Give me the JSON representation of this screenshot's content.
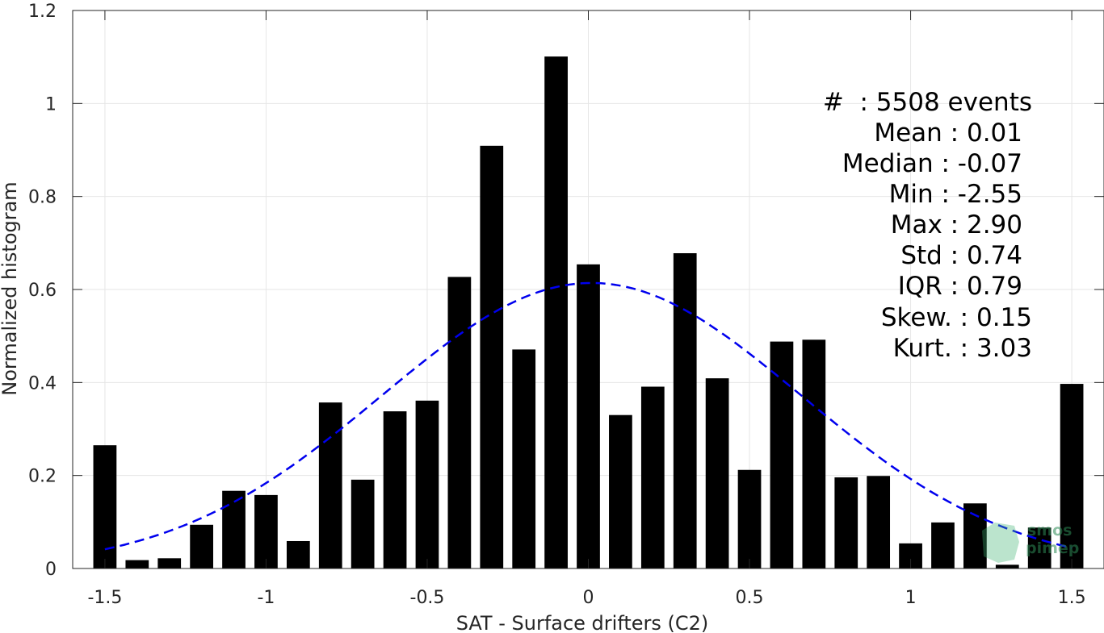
{
  "chart_data": {
    "type": "bar",
    "title": "",
    "xlabel": "SAT - Surface drifters (C2)",
    "ylabel": "Normalized histogram",
    "xlim": [
      -1.6,
      1.6
    ],
    "ylim": [
      0,
      1.2
    ],
    "xticks": [
      -1.5,
      -1,
      -0.5,
      0,
      0.5,
      1,
      1.5
    ],
    "xtick_labels": [
      "-1.5",
      "-1",
      "-0.5",
      "0",
      "0.5",
      "1",
      "1.5"
    ],
    "yticks": [
      0,
      0.2,
      0.4,
      0.6,
      0.8,
      1,
      1.2
    ],
    "ytick_labels": [
      "0",
      "0.2",
      "0.4",
      "0.6",
      "0.8",
      "1",
      "1.2"
    ],
    "grid": true,
    "bar_color": "#000000",
    "x": [
      -1.5,
      -1.4,
      -1.3,
      -1.2,
      -1.1,
      -1.0,
      -0.9,
      -0.8,
      -0.7,
      -0.6,
      -0.5,
      -0.4,
      -0.3,
      -0.2,
      -0.1,
      0.0,
      0.1,
      0.2,
      0.3,
      0.4,
      0.5,
      0.6,
      0.7,
      0.8,
      0.9,
      1.0,
      1.1,
      1.2,
      1.3,
      1.4,
      1.5
    ],
    "values": [
      0.265,
      0.018,
      0.022,
      0.094,
      0.167,
      0.158,
      0.059,
      0.357,
      0.191,
      0.338,
      0.361,
      0.627,
      0.909,
      0.471,
      1.101,
      0.654,
      0.33,
      0.391,
      0.678,
      0.409,
      0.212,
      0.488,
      0.492,
      0.196,
      0.199,
      0.054,
      0.099,
      0.14,
      0.008,
      0.088,
      0.397
    ],
    "fit": {
      "type": "normal",
      "mean": 0.01,
      "std": 0.65,
      "peak": 0.614,
      "color": "#0000ee",
      "style": "dashed",
      "x_range": [
        -1.5,
        1.5
      ]
    },
    "annotations": [
      "#  : 5508 events",
      "Mean : 0.01",
      "Median : -0.07",
      "Min : -2.55",
      "Max : 2.90",
      "Std : 0.74",
      "IQR : 0.79",
      "Skew. : 0.15",
      "Kurt. : 3.03"
    ]
  },
  "watermark": {
    "line1": "smos",
    "line2": "pimep"
  }
}
